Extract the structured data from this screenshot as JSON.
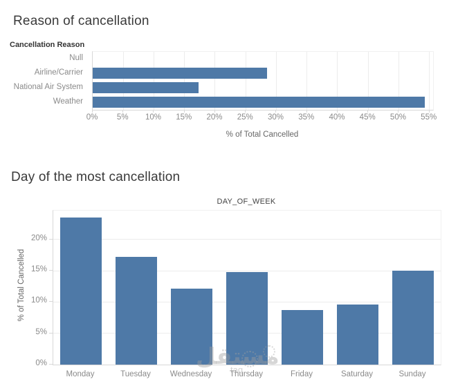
{
  "colors": {
    "bar": "#4e79a7",
    "grid": "#ececec",
    "axis_line": "#d7d7d7",
    "tick_text": "#8a8a8a",
    "title_text": "#3a3a3a"
  },
  "watermark": {
    "text": "مستقل",
    "latin": "taq"
  },
  "chart_data": [
    {
      "type": "bar",
      "orientation": "horizontal",
      "title": "Reason of cancellation",
      "field_label": "Cancellation Reason",
      "categories": [
        "Null",
        "Airline/Carrier",
        "National Air System",
        "Weather"
      ],
      "values": [
        0,
        28.5,
        17.3,
        54.2
      ],
      "xlabel": "% of Total Cancelled",
      "xlim": [
        0,
        55.6
      ],
      "xtick_values": [
        0,
        5,
        10,
        15,
        20,
        25,
        30,
        35,
        40,
        45,
        50,
        55
      ],
      "xtick_labels": [
        "0%",
        "5%",
        "10%",
        "15%",
        "20%",
        "25%",
        "30%",
        "35%",
        "40%",
        "45%",
        "50%",
        "55%"
      ],
      "grid": true,
      "legend": "none",
      "bar_color": "#4e79a7"
    },
    {
      "type": "bar",
      "orientation": "vertical",
      "title": "Day of the most cancellation",
      "column_label": "DAY_OF_WEEK",
      "categories": [
        "Monday",
        "Tuesday",
        "Wednesday",
        "Thursday",
        "Friday",
        "Saturday",
        "Sunday"
      ],
      "values": [
        23.5,
        17.2,
        12.1,
        14.8,
        8.7,
        9.6,
        15.0
      ],
      "ylabel": "% of Total Cancelled",
      "ylim": [
        0,
        24.6
      ],
      "ytick_values": [
        0,
        5,
        10,
        15,
        20
      ],
      "ytick_labels": [
        "0%",
        "5%",
        "10%",
        "15%",
        "20%"
      ],
      "grid": true,
      "legend": "none",
      "bar_color": "#4e79a7"
    }
  ]
}
